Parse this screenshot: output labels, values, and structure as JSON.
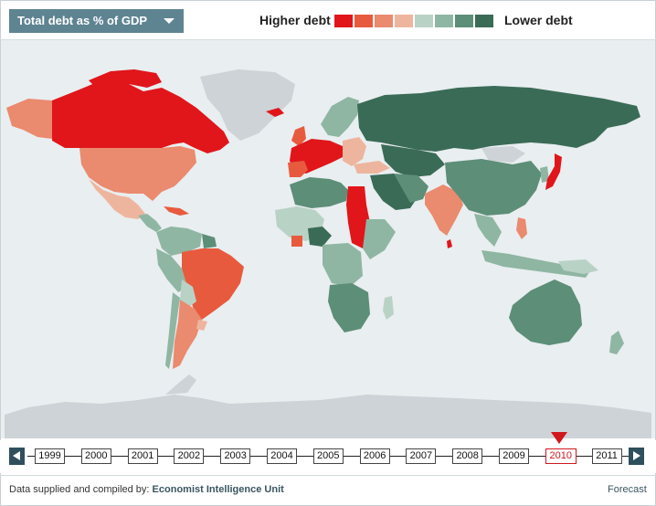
{
  "header": {
    "dropdown_label": "Total debt as % of GDP",
    "legend_high": "Higher debt",
    "legend_low": "Lower debt",
    "scale_colors": [
      "#e0161b",
      "#e85a3e",
      "#ea8a6e",
      "#eeb59e",
      "#b9d2c6",
      "#8fb6a3",
      "#5d8e78",
      "#3a6b57"
    ]
  },
  "timeline": {
    "years": [
      "1999",
      "2000",
      "2001",
      "2002",
      "2003",
      "2004",
      "2005",
      "2006",
      "2007",
      "2008",
      "2009",
      "2010",
      "2011"
    ],
    "selected_year": "2010"
  },
  "footer": {
    "credit_prefix": "Data supplied and compiled by:",
    "credit_source": "Economist Intelligence Unit",
    "forecast_link": "Forecast"
  },
  "map": {
    "regions": [
      {
        "name": "canada",
        "color": "#e0161b"
      },
      {
        "name": "usa",
        "color": "#ea8a6e"
      },
      {
        "name": "mexico",
        "color": "#eeb59e"
      },
      {
        "name": "greenland",
        "color": "#cdd3d6"
      },
      {
        "name": "brazil",
        "color": "#e85a3e"
      },
      {
        "name": "argentina",
        "color": "#ea8a6e"
      },
      {
        "name": "russia",
        "color": "#3a6b57"
      },
      {
        "name": "china",
        "color": "#5d8e78"
      },
      {
        "name": "india",
        "color": "#ea8a6e"
      },
      {
        "name": "japan",
        "color": "#e0161b"
      },
      {
        "name": "australia",
        "color": "#5d8e78"
      },
      {
        "name": "egypt-sudan",
        "color": "#e0161b"
      },
      {
        "name": "western-europe",
        "color": "#e0161b"
      },
      {
        "name": "antarctica",
        "color": "#cdd3d6"
      }
    ]
  }
}
